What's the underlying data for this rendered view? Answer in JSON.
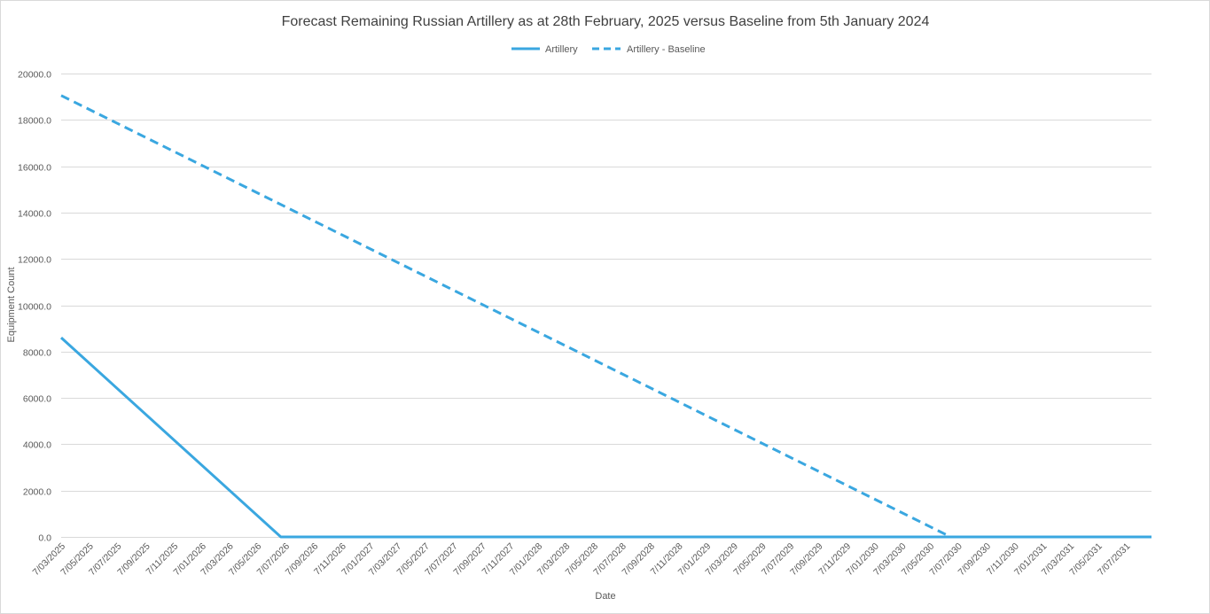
{
  "chart_data": {
    "type": "line",
    "title": "Forecast Remaining Russian Artillery as at 28th February, 2025 versus Baseline from 5th January 2024",
    "xlabel": "Date",
    "ylabel": "Equipment Count",
    "ylim": [
      0,
      20000
    ],
    "yticks": [
      "0.0",
      "2000.0",
      "4000.0",
      "6000.0",
      "8000.0",
      "10000.0",
      "12000.0",
      "14000.0",
      "16000.0",
      "18000.0",
      "20000.0"
    ],
    "xlim": [
      "2025-03-07",
      "2031-08-31"
    ],
    "x_tick_labels": [
      "7/03/2025",
      "7/05/2025",
      "7/07/2025",
      "7/09/2025",
      "7/11/2025",
      "7/01/2026",
      "7/03/2026",
      "7/05/2026",
      "7/07/2026",
      "7/09/2026",
      "7/11/2026",
      "7/01/2027",
      "7/03/2027",
      "7/05/2027",
      "7/07/2027",
      "7/09/2027",
      "7/11/2027",
      "7/01/2028",
      "7/03/2028",
      "7/05/2028",
      "7/07/2028",
      "7/09/2028",
      "7/11/2028",
      "7/01/2029",
      "7/03/2029",
      "7/05/2029",
      "7/07/2029",
      "7/09/2029",
      "7/11/2029",
      "7/01/2030",
      "7/03/2030",
      "7/05/2030",
      "7/07/2030",
      "7/09/2030",
      "7/11/2030",
      "7/01/2031",
      "7/03/2031",
      "7/05/2031",
      "7/07/2031"
    ],
    "grid": true,
    "legend_position": "top",
    "series": [
      {
        "name": "Artillery",
        "style": "solid",
        "color": "#3aa7e0",
        "points": [
          {
            "x": "2025-03-07",
            "y": 8600
          },
          {
            "x": "2026-06-27",
            "y": 0
          },
          {
            "x": "2031-08-31",
            "y": 0
          }
        ]
      },
      {
        "name": "Artillery - Baseline",
        "style": "dashed",
        "color": "#3aa7e0",
        "points": [
          {
            "x": "2025-03-07",
            "y": 19050
          },
          {
            "x": "2030-06-21",
            "y": 0
          },
          {
            "x": "2031-08-31",
            "y": 0
          }
        ]
      }
    ]
  }
}
